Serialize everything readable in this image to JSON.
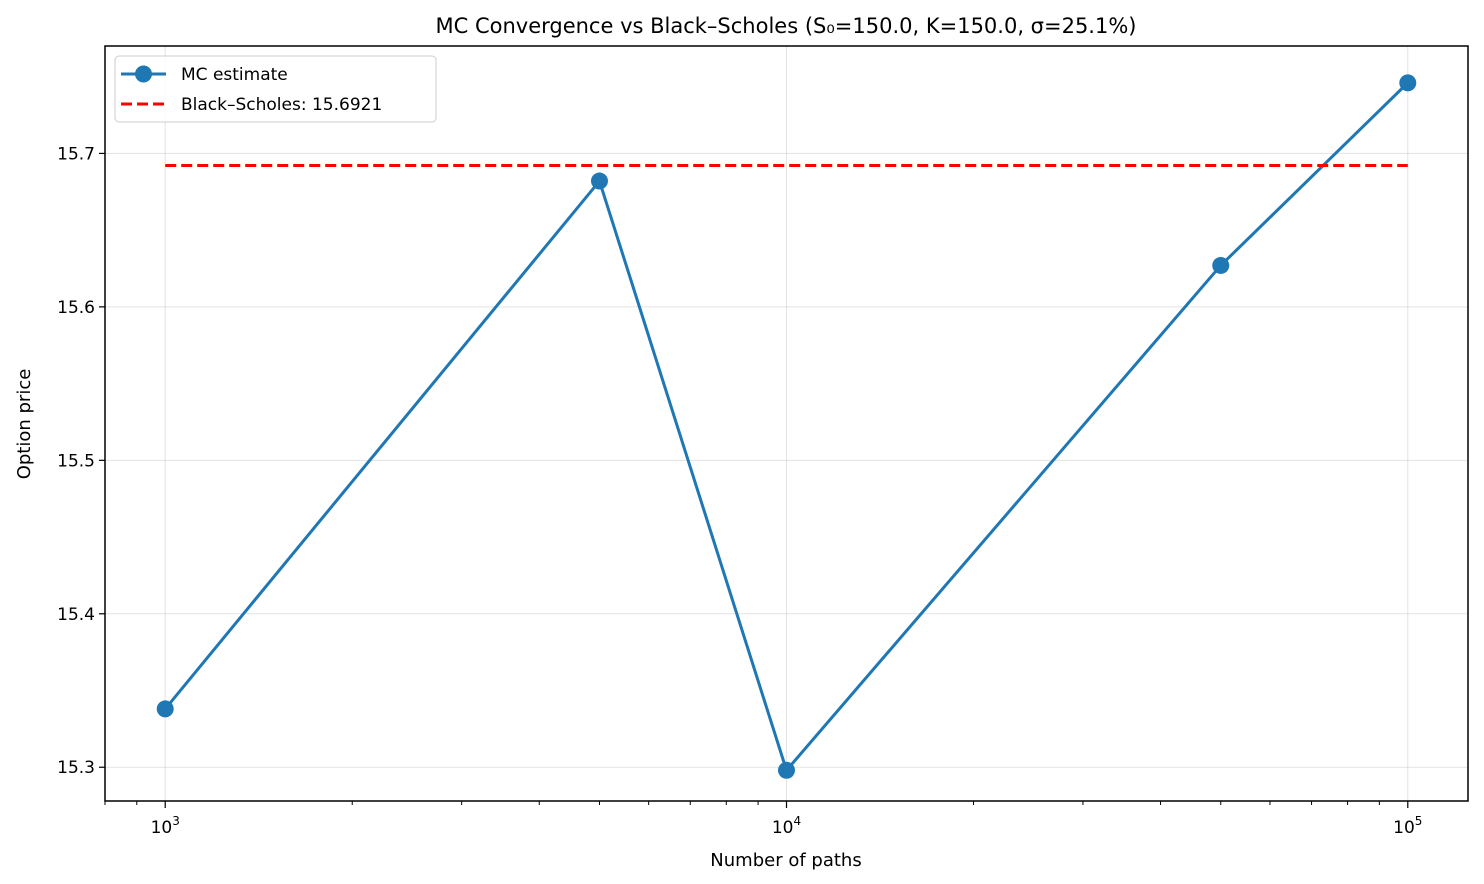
{
  "chart_data": {
    "type": "line",
    "title": "MC Convergence vs Black–Scholes (S₀=150.0, K=150.0, σ=25.1%)",
    "xlabel": "Number of paths",
    "ylabel": "Option price",
    "xscale": "log",
    "xlim": [
      800,
      125000
    ],
    "ylim": [
      15.278,
      15.77
    ],
    "grid": true,
    "legend_position": "top-left",
    "x_ticks": [
      {
        "value": 1000,
        "base": "10",
        "exp": "3"
      },
      {
        "value": 10000,
        "base": "10",
        "exp": "4"
      },
      {
        "value": 100000,
        "base": "10",
        "exp": "5"
      }
    ],
    "y_ticks": [
      {
        "value": 15.3,
        "label": "15.3"
      },
      {
        "value": 15.4,
        "label": "15.4"
      },
      {
        "value": 15.5,
        "label": "15.5"
      },
      {
        "value": 15.6,
        "label": "15.6"
      },
      {
        "value": 15.7,
        "label": "15.7"
      }
    ],
    "series": [
      {
        "name": "MC estimate",
        "color": "#1f77b4",
        "style": "solid",
        "marker": "circle",
        "x": [
          1000,
          5000,
          10000,
          50000,
          100000
        ],
        "y": [
          15.338,
          15.682,
          15.298,
          15.627,
          15.746
        ]
      },
      {
        "name": "Black–Scholes: 15.6921",
        "color": "#ff0000",
        "style": "dashed",
        "marker": "none",
        "x": [
          1000,
          100000
        ],
        "y": [
          15.6921,
          15.6921
        ]
      }
    ]
  }
}
